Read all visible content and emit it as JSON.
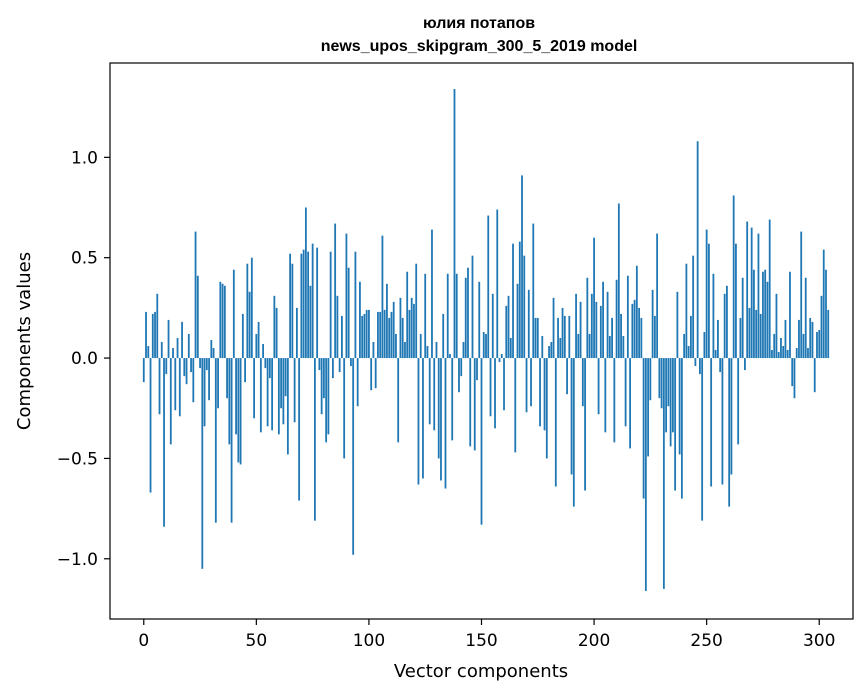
{
  "chart_data": {
    "type": "bar",
    "title_lines": [
      "юлия потапов",
      "news_upos_skipgram_300_5_2019 model"
    ],
    "xlabel": "Vector components",
    "ylabel": "Components values",
    "xlim": [
      -15,
      315
    ],
    "ylim": [
      -1.3,
      1.47
    ],
    "xticks": [
      0,
      50,
      100,
      150,
      200,
      250,
      300
    ],
    "xtick_labels": [
      "0",
      "50",
      "100",
      "150",
      "200",
      "250",
      "300"
    ],
    "yticks": [
      -1.0,
      -0.5,
      0.0,
      0.5,
      1.0
    ],
    "ytick_labels": [
      "−1.0",
      "−0.5",
      "0.0",
      "0.5",
      "1.0"
    ],
    "bar_color": "#1f77b4",
    "values": [
      -0.12,
      0.23,
      0.06,
      -0.67,
      0.22,
      0.23,
      0.32,
      -0.28,
      0.08,
      -0.84,
      -0.08,
      0.19,
      -0.43,
      0.05,
      -0.26,
      0.1,
      -0.29,
      0.18,
      -0.09,
      -0.13,
      0.12,
      -0.07,
      -0.22,
      0.63,
      0.41,
      -0.05,
      -1.05,
      -0.34,
      -0.06,
      -0.21,
      0.09,
      0.05,
      -0.82,
      -0.25,
      0.38,
      0.37,
      0.36,
      -0.2,
      -0.43,
      -0.82,
      0.44,
      -0.38,
      -0.52,
      -0.53,
      0.22,
      -0.12,
      0.47,
      0.33,
      0.5,
      -0.3,
      0.12,
      0.18,
      -0.37,
      0.07,
      -0.05,
      -0.34,
      -0.1,
      -0.36,
      0.31,
      0.25,
      -0.38,
      -0.25,
      -0.33,
      -0.19,
      -0.48,
      0.52,
      0.47,
      -0.32,
      0.25,
      -0.71,
      0.52,
      0.54,
      0.75,
      0.53,
      0.36,
      0.57,
      -0.81,
      0.55,
      -0.06,
      -0.28,
      -0.2,
      -0.42,
      -0.38,
      0.53,
      -0.1,
      0.67,
      0.31,
      -0.07,
      0.21,
      -0.5,
      0.62,
      0.45,
      -0.04,
      -0.98,
      0.53,
      -0.24,
      0.38,
      0.21,
      0.22,
      0.24,
      0.24,
      -0.16,
      0.08,
      -0.15,
      0.23,
      0.23,
      0.61,
      0.24,
      0.37,
      0.2,
      0.23,
      0.28,
      0.12,
      -0.42,
      0.3,
      0.2,
      0.08,
      0.43,
      0.24,
      0.3,
      0.27,
      0.47,
      -0.63,
      0.12,
      -0.6,
      0.42,
      0.06,
      -0.33,
      0.64,
      -0.36,
      0.08,
      -0.5,
      -0.61,
      0.22,
      -0.65,
      0.42,
      0.02,
      -0.41,
      1.34,
      0.42,
      -0.17,
      -0.09,
      0.08,
      0.4,
      0.45,
      -0.44,
      0.51,
      -0.46,
      -0.11,
      0.38,
      -0.83,
      0.13,
      0.12,
      0.71,
      -0.29,
      0.32,
      -0.35,
      0.74,
      -0.02,
      0.02,
      -0.26,
      0.26,
      0.31,
      0.1,
      0.57,
      -0.47,
      0.37,
      0.58,
      0.91,
      0.51,
      -0.27,
      0.34,
      -0.24,
      0.67,
      0.2,
      0.2,
      -0.34,
      0.11,
      -0.36,
      -0.5,
      0.06,
      0.08,
      0.3,
      -0.64,
      0.2,
      0.1,
      0.25,
      0.21,
      -0.18,
      0.21,
      -0.58,
      -0.74,
      0.32,
      0.12,
      0.28,
      -0.24,
      -0.66,
      0.4,
      0.12,
      0.32,
      0.6,
      0.28,
      -0.28,
      0.26,
      0.38,
      -0.37,
      0.33,
      0.11,
      0.2,
      -0.42,
      0.39,
      0.77,
      0.22,
      0.11,
      -0.34,
      0.41,
      -0.45,
      0.27,
      0.29,
      0.46,
      0.25,
      0.2,
      -0.7,
      -1.16,
      -0.49,
      -0.21,
      0.34,
      0.21,
      0.62,
      -0.2,
      -0.25,
      -1.15,
      -0.37,
      -0.24,
      -0.44,
      -0.37,
      -0.66,
      0.33,
      -0.48,
      -0.7,
      0.12,
      0.47,
      0.06,
      0.21,
      0.51,
      -0.04,
      1.08,
      -0.08,
      -0.81,
      0.13,
      0.64,
      0.57,
      -0.64,
      0.42,
      0.04,
      0.19,
      -0.07,
      -0.63,
      0.32,
      0.36,
      -0.74,
      -0.58,
      0.81,
      0.57,
      -0.43,
      0.2,
      0.4,
      -0.06,
      0.68,
      0.25,
      0.65,
      0.44,
      0.24,
      0.62,
      0.22,
      0.43,
      0.44,
      0.38,
      0.69,
      0.04,
      0.12,
      0.32,
      0.03,
      0.1,
      0.06,
      0.19,
      0.04,
      0.43,
      -0.14,
      -0.2,
      0.05,
      0.19,
      0.63,
      0.12,
      0.4,
      0.05,
      0.2,
      0.18,
      -0.17,
      0.13,
      0.14,
      0.31,
      0.54,
      0.44,
      0.24
    ]
  }
}
